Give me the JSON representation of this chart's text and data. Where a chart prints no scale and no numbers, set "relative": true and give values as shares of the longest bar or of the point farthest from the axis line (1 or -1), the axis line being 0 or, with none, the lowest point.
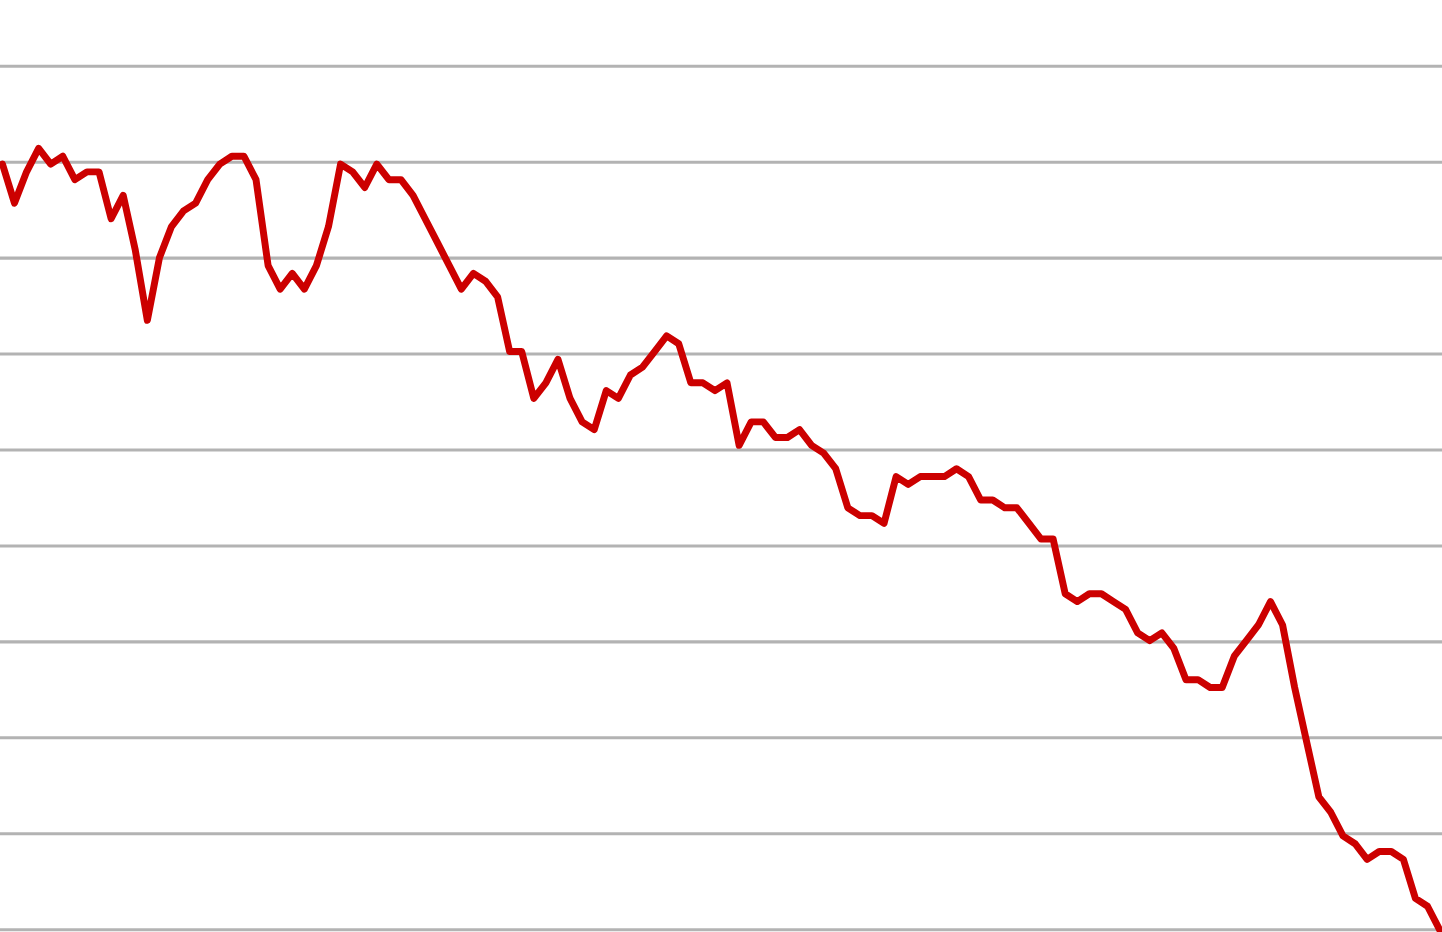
{
  "chart_data": {
    "type": "line",
    "relative": true,
    "grid": "y",
    "legend": false,
    "marker": "none",
    "line_style": "solid",
    "tick_labels": false,
    "categories": [
      null,
      null,
      null,
      null,
      null,
      null,
      null,
      null,
      null,
      null,
      null,
      null,
      null,
      null,
      null,
      null,
      null,
      null,
      null,
      null,
      null,
      null,
      null,
      null,
      null,
      null,
      null,
      null,
      null,
      null,
      null,
      null,
      null,
      null,
      null,
      null,
      null,
      null,
      null,
      null,
      null,
      null,
      null,
      null,
      null,
      null,
      null,
      null,
      null,
      null,
      null,
      null,
      null,
      null,
      null,
      null,
      null,
      null,
      null,
      null,
      null,
      null,
      null,
      null,
      null,
      null,
      null,
      null,
      null,
      null,
      null,
      null,
      null,
      null,
      null,
      null,
      null,
      null,
      null,
      null,
      null,
      null,
      null,
      null,
      null,
      null,
      null,
      null,
      null,
      null,
      null,
      null,
      null,
      null,
      null,
      null,
      null,
      null,
      null,
      null,
      null,
      null,
      null,
      null,
      null,
      null,
      null,
      null,
      null,
      null,
      null,
      null,
      null,
      null,
      null,
      null,
      null,
      null,
      null,
      null
    ],
    "series": [
      {
        "color": "#cc0000",
        "values": [
          0.98,
          0.93,
          0.97,
          1.0,
          0.98,
          0.99,
          0.96,
          0.97,
          0.97,
          0.91,
          0.94,
          0.87,
          0.78,
          0.86,
          0.9,
          0.92,
          0.93,
          0.96,
          0.98,
          0.99,
          0.99,
          0.96,
          0.85,
          0.82,
          0.84,
          0.82,
          0.85,
          0.9,
          0.98,
          0.97,
          0.95,
          0.98,
          0.96,
          0.96,
          0.94,
          0.91,
          0.88,
          0.85,
          0.82,
          0.84,
          0.83,
          0.81,
          0.74,
          0.74,
          0.68,
          0.7,
          0.73,
          0.68,
          0.65,
          0.64,
          0.69,
          0.68,
          0.71,
          0.72,
          0.74,
          0.76,
          0.75,
          0.7,
          0.7,
          0.69,
          0.7,
          0.62,
          0.65,
          0.65,
          0.63,
          0.63,
          0.64,
          0.62,
          0.61,
          0.59,
          0.54,
          0.53,
          0.53,
          0.52,
          0.58,
          0.57,
          0.58,
          0.58,
          0.58,
          0.59,
          0.58,
          0.55,
          0.55,
          0.54,
          0.54,
          0.52,
          0.5,
          0.5,
          0.43,
          0.42,
          0.43,
          0.43,
          0.42,
          0.41,
          0.38,
          0.37,
          0.38,
          0.36,
          0.32,
          0.32,
          0.31,
          0.31,
          0.35,
          0.37,
          0.39,
          0.42,
          0.39,
          0.31,
          0.24,
          0.17,
          0.15,
          0.12,
          0.11,
          0.09,
          0.1,
          0.1,
          0.09,
          0.04,
          0.03,
          0
        ]
      }
    ]
  }
}
